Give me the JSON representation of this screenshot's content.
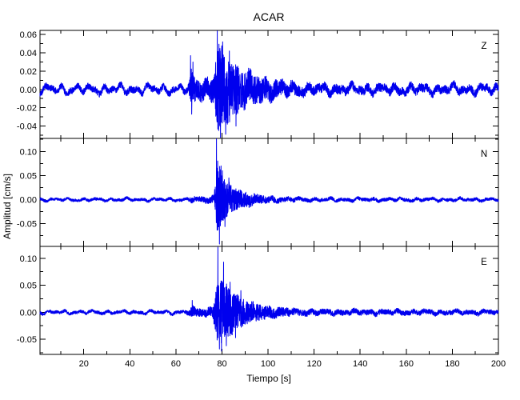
{
  "figure": {
    "background": "#ffffff",
    "axis_color": "#000000",
    "trace_color": "#0000ee"
  },
  "chart_data": {
    "type": "line",
    "subtype": "seismogram-3-component",
    "title": "ACAR",
    "xlabel": "Tiempo [s]",
    "ylabel": "Amplitud [cm/s]",
    "x_range": [
      1,
      200
    ],
    "x_major_ticks": [
      20,
      40,
      60,
      80,
      100,
      120,
      140,
      160,
      180,
      200
    ],
    "x_tick_labels": [
      "20",
      "40",
      "60",
      "80",
      "100",
      "120",
      "140",
      "160",
      "180",
      "200"
    ],
    "x_minor_step": 10,
    "grid": "off",
    "legend": "none",
    "panels": [
      {
        "label": "Z",
        "y_range": [
          -0.0535,
          0.0645
        ],
        "y_major_ticks": [
          0.06,
          0.04,
          0.02,
          0,
          -0.02,
          -0.04
        ],
        "y_major_labels": [
          "0.06",
          "0.04",
          "0.02",
          "0.00",
          "-0.02",
          "-0.04"
        ],
        "y_minor_step": 0.01,
        "seed": 42,
        "lf_amp": 0.0025,
        "envelope": [
          [
            1,
            0.0035
          ],
          [
            63,
            0.0035
          ],
          [
            65.6,
            0.004
          ],
          [
            66.1,
            0.018
          ],
          [
            67,
            0.02
          ],
          [
            68.5,
            0.012
          ],
          [
            71,
            0.0105
          ],
          [
            75,
            0.011
          ],
          [
            76.8,
            0.016
          ],
          [
            77.6,
            0.042
          ],
          [
            78.6,
            0.05
          ],
          [
            80,
            0.044
          ],
          [
            82,
            0.038
          ],
          [
            85,
            0.03
          ],
          [
            88,
            0.024
          ],
          [
            92,
            0.018
          ],
          [
            96,
            0.014
          ],
          [
            101,
            0.011
          ],
          [
            107,
            0.008
          ],
          [
            114,
            0.006
          ],
          [
            122,
            0.005
          ],
          [
            200,
            0.0042
          ]
        ],
        "spikes": [
          [
            66.35,
            0.037
          ],
          [
            66.85,
            -0.027
          ],
          [
            67.4,
            0.03
          ],
          [
            77.95,
            0.0638
          ],
          [
            78.55,
            -0.045
          ],
          [
            79.35,
            -0.0525
          ],
          [
            80.3,
            0.052
          ],
          [
            81.6,
            -0.049
          ],
          [
            83.2,
            0.042
          ],
          [
            86.1,
            -0.04
          ]
        ]
      },
      {
        "label": "N",
        "y_range": [
          -0.097,
          0.127
        ],
        "y_major_ticks": [
          0.1,
          0.05,
          0,
          -0.05
        ],
        "y_major_labels": [
          "0.10",
          "0.05",
          "0.00",
          "-0.05"
        ],
        "y_minor_step": 0.025,
        "seed": 101,
        "lf_amp": 0.0016,
        "envelope": [
          [
            1,
            0.0028
          ],
          [
            63,
            0.0028
          ],
          [
            65.5,
            0.003
          ],
          [
            66,
            0.0055
          ],
          [
            70,
            0.0055
          ],
          [
            74,
            0.006
          ],
          [
            76.5,
            0.009
          ],
          [
            77.3,
            0.04
          ],
          [
            77.9,
            0.075
          ],
          [
            79,
            0.07
          ],
          [
            80.5,
            0.048
          ],
          [
            82,
            0.038
          ],
          [
            84,
            0.03
          ],
          [
            86,
            0.024
          ],
          [
            89,
            0.018
          ],
          [
            93,
            0.012
          ],
          [
            98,
            0.008
          ],
          [
            104,
            0.0055
          ],
          [
            112,
            0.0042
          ],
          [
            120,
            0.0035
          ],
          [
            200,
            0.003
          ]
        ],
        "spikes": [
          [
            77.62,
            0.126
          ],
          [
            78.15,
            0.08
          ],
          [
            78.9,
            -0.092
          ],
          [
            79.6,
            0.07
          ],
          [
            80.2,
            0.06
          ],
          [
            81.3,
            -0.056
          ],
          [
            83.0,
            0.045
          ]
        ]
      },
      {
        "label": "E",
        "y_range": [
          -0.078,
          0.122
        ],
        "y_major_ticks": [
          0.1,
          0.05,
          0,
          -0.05
        ],
        "y_major_labels": [
          "0.10",
          "0.05",
          "0.00",
          "-0.05"
        ],
        "y_minor_step": 0.025,
        "seed": 77,
        "lf_amp": 0.0016,
        "envelope": [
          [
            1,
            0.0028
          ],
          [
            63,
            0.0028
          ],
          [
            65.7,
            0.004
          ],
          [
            66.2,
            0.008
          ],
          [
            67.2,
            0.011
          ],
          [
            68.5,
            0.008
          ],
          [
            72,
            0.007
          ],
          [
            76,
            0.009
          ],
          [
            77.5,
            0.045
          ],
          [
            78.4,
            0.07
          ],
          [
            80,
            0.058
          ],
          [
            82,
            0.05
          ],
          [
            84,
            0.042
          ],
          [
            86,
            0.034
          ],
          [
            89,
            0.026
          ],
          [
            92,
            0.02
          ],
          [
            96,
            0.015
          ],
          [
            101,
            0.011
          ],
          [
            107,
            0.008
          ],
          [
            114,
            0.006
          ],
          [
            122,
            0.005
          ],
          [
            200,
            0.004
          ]
        ],
        "spikes": [
          [
            67.1,
            0.022
          ],
          [
            78.25,
            0.1205
          ],
          [
            78.9,
            -0.068
          ],
          [
            79.8,
            -0.072
          ],
          [
            80.7,
            0.093
          ],
          [
            81.9,
            -0.062
          ],
          [
            83.5,
            0.056
          ],
          [
            85.9,
            -0.047
          ],
          [
            88.2,
            0.04
          ]
        ]
      }
    ]
  }
}
